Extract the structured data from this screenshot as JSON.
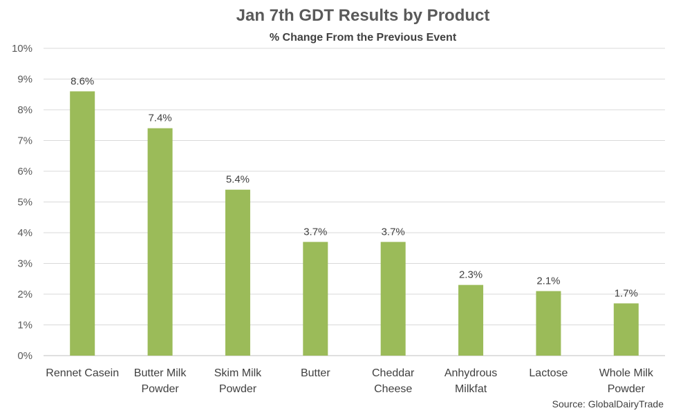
{
  "chart_data": {
    "type": "bar",
    "title": "Jan 7th GDT Results by Product",
    "subtitle": "% Change From the Previous Event",
    "categories": [
      [
        "Rennet Casein"
      ],
      [
        "Butter Milk",
        "Powder"
      ],
      [
        "Skim Milk",
        "Powder"
      ],
      [
        "Butter"
      ],
      [
        "Cheddar",
        "Cheese"
      ],
      [
        "Anhydrous",
        "Milkfat"
      ],
      [
        "Lactose"
      ],
      [
        "Whole Milk",
        "Powder"
      ]
    ],
    "values": [
      8.6,
      7.4,
      5.4,
      3.7,
      3.7,
      2.3,
      2.1,
      1.7
    ],
    "data_labels": [
      "8.6%",
      "7.4%",
      "5.4%",
      "3.7%",
      "3.7%",
      "2.3%",
      "2.1%",
      "1.7%"
    ],
    "ylim": [
      0,
      10
    ],
    "yticks": [
      0,
      1,
      2,
      3,
      4,
      5,
      6,
      7,
      8,
      9,
      10
    ],
    "ytick_labels": [
      "0%",
      "1%",
      "2%",
      "3%",
      "4%",
      "5%",
      "6%",
      "7%",
      "8%",
      "9%",
      "10%"
    ],
    "grid": true,
    "bar_color": "#9bbb59",
    "source": "Source: GlobalDairyTrade"
  }
}
